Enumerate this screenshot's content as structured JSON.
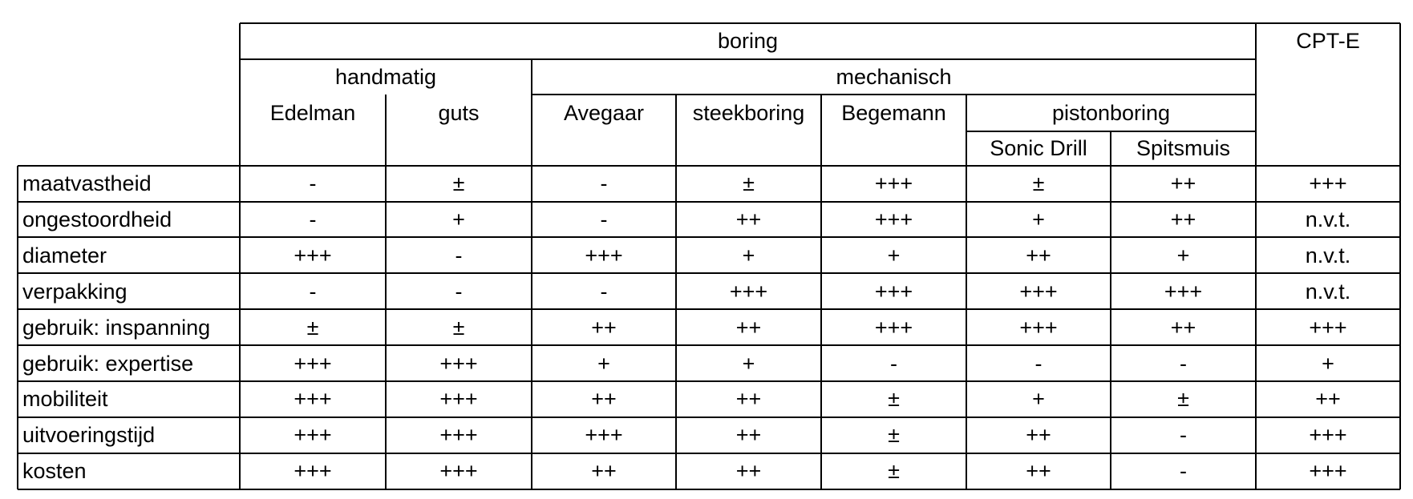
{
  "table": {
    "group_header": "boring",
    "cpt_header": "CPT-E",
    "handmatig_header": "handmatig",
    "mechanisch_header": "mechanisch",
    "pistonboring_header": "pistonboring",
    "columns": [
      "Edelman",
      "guts",
      "Avegaar",
      "steekboring",
      "Begemann",
      "Sonic Drill",
      "Spitsmuis",
      ""
    ],
    "rows": [
      {
        "label": "maatvastheid",
        "values": [
          "-",
          "±",
          "-",
          "±",
          "+++",
          "±",
          "++",
          "+++"
        ]
      },
      {
        "label": "ongestoordheid",
        "values": [
          "-",
          "+",
          "-",
          "++",
          "+++",
          "+",
          "++",
          "n.v.t."
        ]
      },
      {
        "label": "diameter",
        "values": [
          "+++",
          "-",
          "+++",
          "+",
          "+",
          "++",
          "+",
          "n.v.t."
        ]
      },
      {
        "label": "verpakking",
        "values": [
          "-",
          "-",
          "-",
          "+++",
          "+++",
          "+++",
          "+++",
          "n.v.t."
        ]
      },
      {
        "label": "gebruik: inspanning",
        "values": [
          "±",
          "±",
          "++",
          "++",
          "+++",
          "+++",
          "++",
          "+++"
        ]
      },
      {
        "label": "gebruik: expertise",
        "values": [
          "+++",
          "+++",
          "+",
          "+",
          "-",
          "-",
          "-",
          "+"
        ]
      },
      {
        "label": "mobiliteit",
        "values": [
          "+++",
          "+++",
          "++",
          "++",
          "±",
          "+",
          "±",
          "++"
        ]
      },
      {
        "label": "uitvoeringstijd",
        "values": [
          "+++",
          "+++",
          "+++",
          "++",
          "±",
          "++",
          "-",
          "+++"
        ]
      },
      {
        "label": "kosten",
        "values": [
          "+++",
          "+++",
          "++",
          "++",
          "±",
          "++",
          "-",
          "+++"
        ]
      }
    ]
  }
}
